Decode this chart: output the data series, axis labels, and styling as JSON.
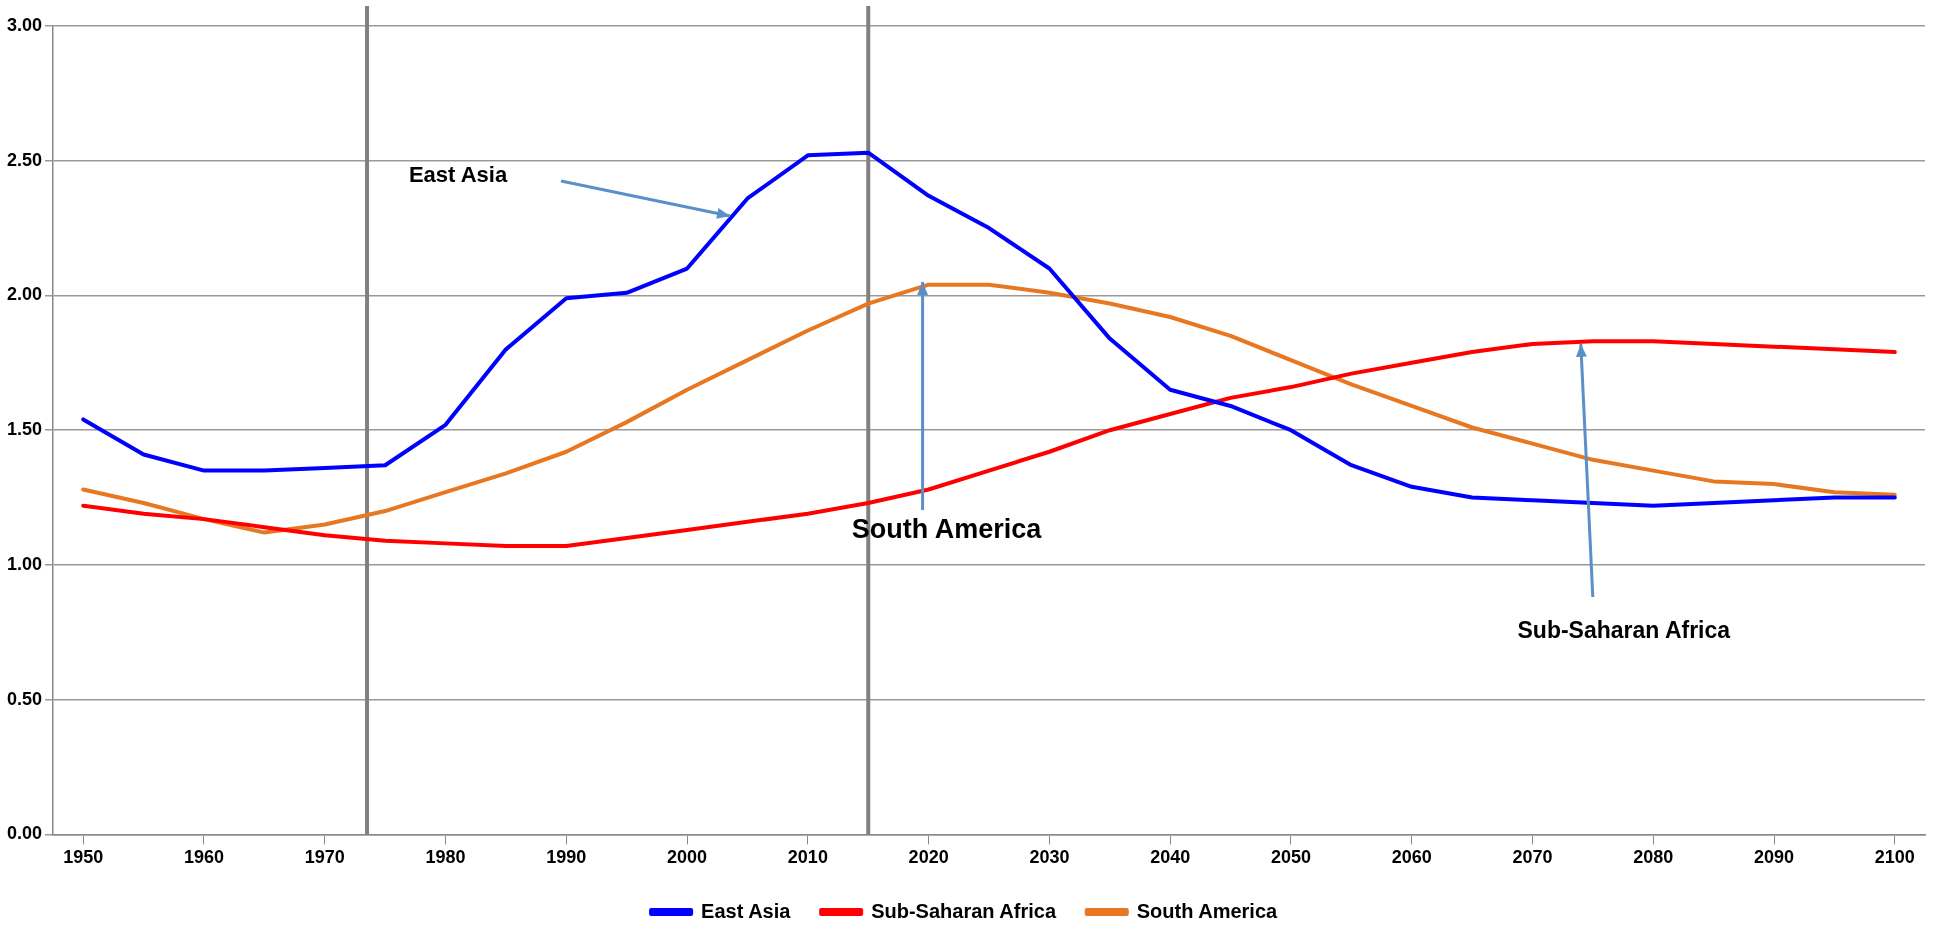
{
  "chart_data": {
    "type": "line",
    "x": [
      1950,
      1955,
      1960,
      1965,
      1970,
      1975,
      1980,
      1985,
      1990,
      1995,
      2000,
      2005,
      2010,
      2015,
      2020,
      2025,
      2030,
      2035,
      2040,
      2045,
      2050,
      2055,
      2060,
      2065,
      2070,
      2075,
      2080,
      2085,
      2090,
      2095,
      2100
    ],
    "series": [
      {
        "name": "East Asia",
        "color": "#0000ff",
        "values": [
          1.54,
          1.41,
          1.35,
          1.35,
          1.36,
          1.37,
          1.52,
          1.8,
          1.99,
          2.01,
          2.1,
          2.36,
          2.52,
          2.53,
          2.37,
          2.25,
          2.1,
          1.84,
          1.65,
          1.59,
          1.5,
          1.37,
          1.29,
          1.25,
          1.24,
          1.23,
          1.22,
          1.23,
          1.24,
          1.25,
          1.25
        ]
      },
      {
        "name": "Sub-Saharan Africa",
        "color": "#ff0000",
        "values": [
          1.22,
          1.19,
          1.17,
          1.14,
          1.11,
          1.09,
          1.08,
          1.07,
          1.07,
          1.1,
          1.13,
          1.16,
          1.19,
          1.23,
          1.28,
          1.35,
          1.42,
          1.5,
          1.56,
          1.62,
          1.66,
          1.71,
          1.75,
          1.79,
          1.82,
          1.83,
          1.83,
          1.82,
          1.81,
          1.8,
          1.79
        ]
      },
      {
        "name": "South America",
        "color": "#e87722",
        "values": [
          1.28,
          1.23,
          1.17,
          1.12,
          1.15,
          1.2,
          1.27,
          1.34,
          1.42,
          1.53,
          1.65,
          1.76,
          1.87,
          1.97,
          2.04,
          2.04,
          2.01,
          1.97,
          1.92,
          1.85,
          1.76,
          1.67,
          1.59,
          1.51,
          1.45,
          1.39,
          1.35,
          1.31,
          1.3,
          1.27,
          1.26
        ]
      }
    ],
    "xlim": [
      1947.5,
      2102.5
    ],
    "xticks": [
      1950,
      1960,
      1970,
      1980,
      1990,
      2000,
      2010,
      2020,
      2030,
      2040,
      2050,
      2060,
      2070,
      2080,
      2090,
      2100
    ],
    "ylim": [
      0,
      3
    ],
    "yticks": [
      {
        "value": 0,
        "label": "0.00"
      },
      {
        "value": 0.5,
        "label": "0.50"
      },
      {
        "value": 1,
        "label": "1.00"
      },
      {
        "value": 1.5,
        "label": "1.50"
      },
      {
        "value": 2,
        "label": "2.00"
      },
      {
        "value": 2.5,
        "label": "2.50"
      },
      {
        "value": 3,
        "label": "3.00"
      }
    ],
    "grid": "y",
    "legend": "bottom",
    "marker": "none",
    "ref_lines": [
      {
        "axis": "x",
        "value": 1973.5,
        "color": "#808080"
      },
      {
        "axis": "x",
        "value": 2015,
        "color": "#808080"
      }
    ],
    "annotations": [
      "East Asia",
      {
        "text": "South America",
        "x": 2019.5,
        "y": 2.05
      },
      {
        "text": "Sub-Saharan Africa",
        "x": 2074,
        "y": 1.82
      }
    ]
  }
}
